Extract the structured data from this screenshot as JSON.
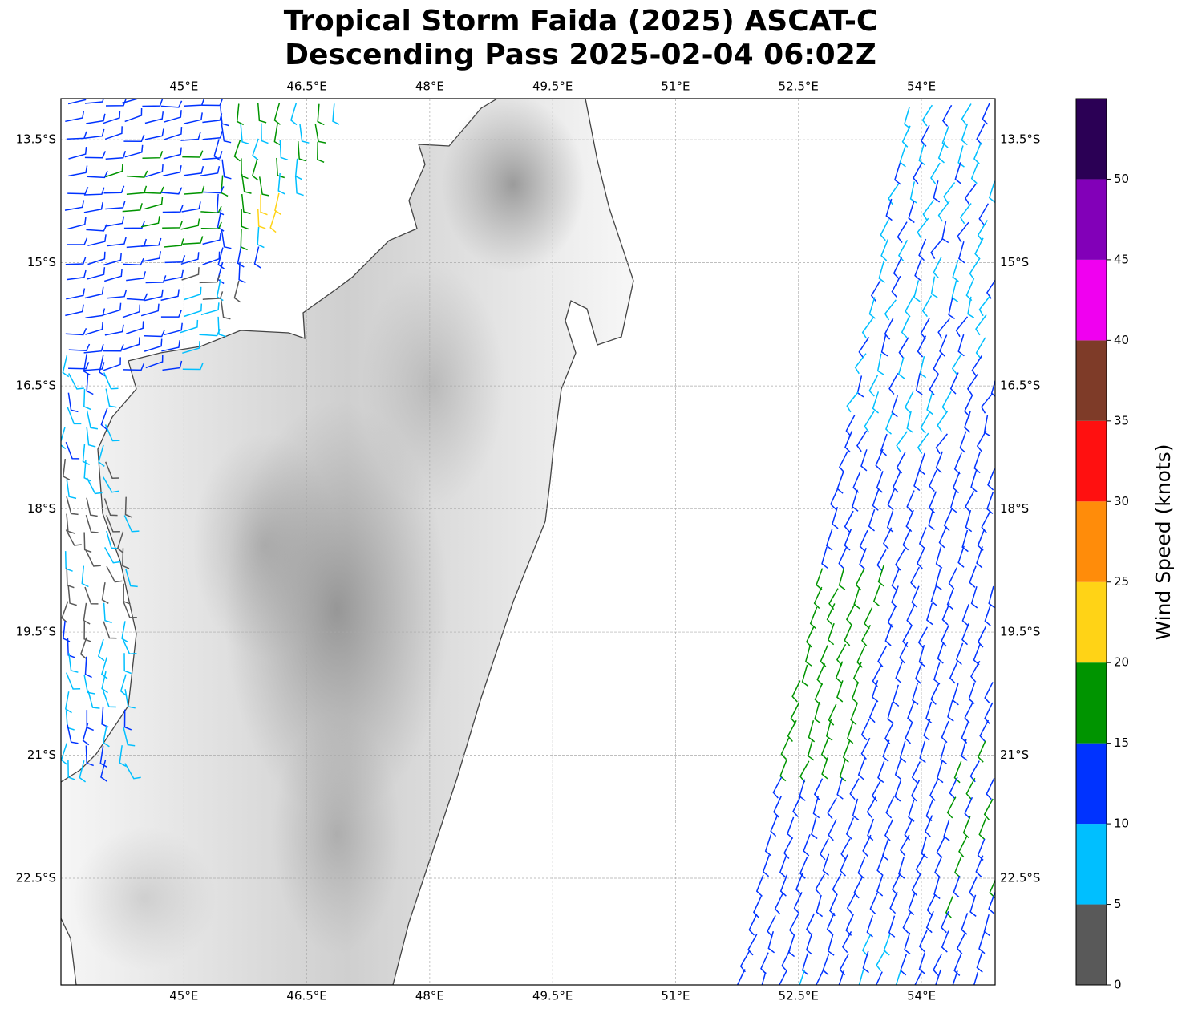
{
  "chart_data": {
    "type": "map",
    "title": [
      "Tropical Storm Faida (2025) ASCAT-C",
      "Descending Pass 2025-02-04 06:02Z"
    ],
    "xlim": [
      43.5,
      54.9
    ],
    "ylim": [
      -13.0,
      -23.8
    ],
    "xticks": [
      {
        "value": 45,
        "label": "45°E"
      },
      {
        "value": 46.5,
        "label": "46.5°E"
      },
      {
        "value": 48,
        "label": "48°E"
      },
      {
        "value": 49.5,
        "label": "49.5°E"
      },
      {
        "value": 51,
        "label": "51°E"
      },
      {
        "value": 52.5,
        "label": "52.5°E"
      },
      {
        "value": 54,
        "label": "54°E"
      }
    ],
    "yticks": [
      {
        "value": -13.5,
        "label": "13.5°S"
      },
      {
        "value": -15,
        "label": "15°S"
      },
      {
        "value": -16.5,
        "label": "16.5°S"
      },
      {
        "value": -18,
        "label": "18°S"
      },
      {
        "value": -19.5,
        "label": "19.5°S"
      },
      {
        "value": -21,
        "label": "21°S"
      },
      {
        "value": -22.5,
        "label": "22.5°S"
      }
    ],
    "grid": true,
    "colorbar": {
      "label": "Wind Speed (knots)",
      "clim": [
        0,
        55
      ],
      "ticks": [
        0,
        5,
        10,
        15,
        20,
        25,
        30,
        35,
        40,
        45,
        50
      ],
      "colors": [
        "#595959",
        "#00bfff",
        "#0033ff",
        "#009400",
        "#ffd316",
        "#ff8c0a",
        "#ff1010",
        "#7e3b28",
        "#f000f0",
        "#8200b8",
        "#2b0055"
      ]
    }
  }
}
